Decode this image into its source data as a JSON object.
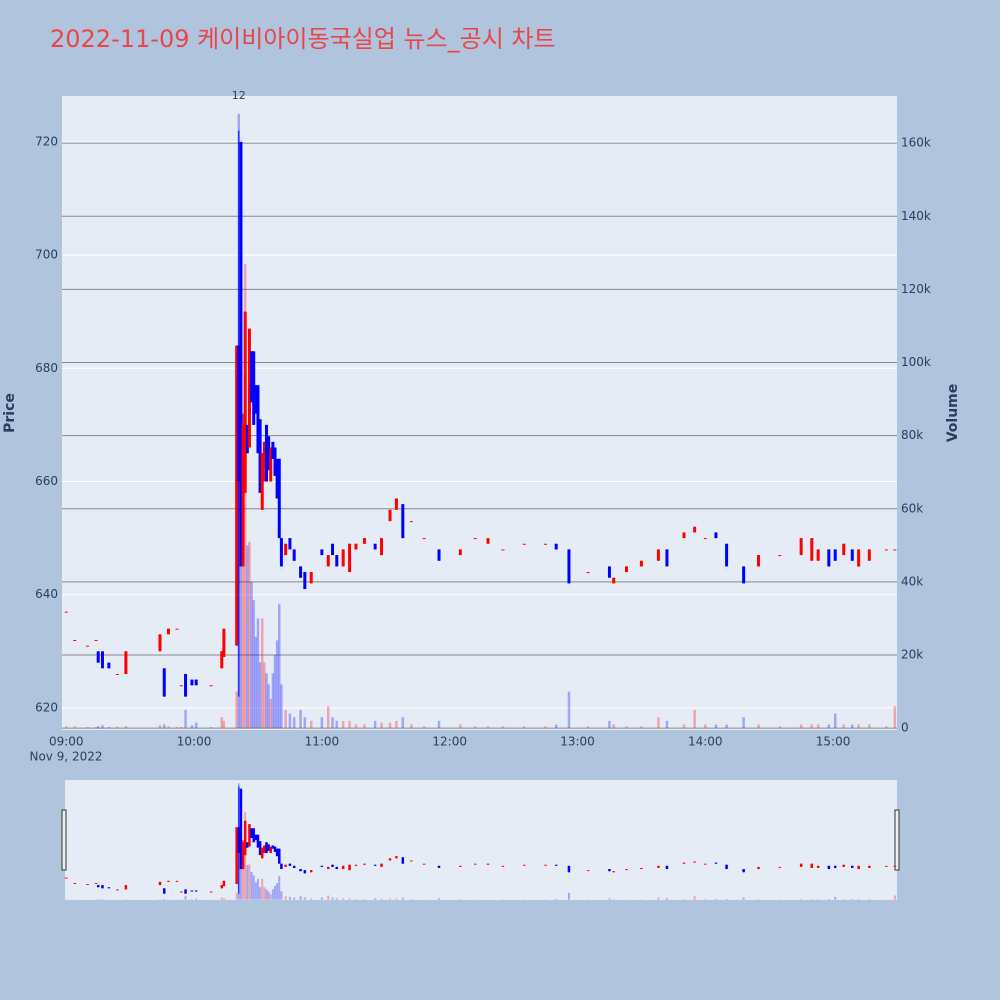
{
  "chart_data": {
    "type": "candlestick",
    "title": "2022-11-09 케이비아이동국실업 뉴스_공시 차트",
    "ylabel": "Price",
    "y2label": "Volume",
    "x": [
      "09:00",
      "09:04",
      "09:10",
      "09:14",
      "09:15",
      "09:17",
      "09:20",
      "09:24",
      "09:28",
      "09:44",
      "09:46",
      "09:48",
      "09:52",
      "09:54",
      "09:56",
      "09:59",
      "10:01",
      "10:08",
      "10:13",
      "10:14",
      "10:20",
      "10:21",
      "10:22",
      "10:23",
      "10:24",
      "10:25",
      "10:26",
      "10:27",
      "10:28",
      "10:29",
      "10:30",
      "10:31",
      "10:32",
      "10:33",
      "10:34",
      "10:35",
      "10:36",
      "10:37",
      "10:38",
      "10:39",
      "10:40",
      "10:41",
      "10:43",
      "10:45",
      "10:47",
      "10:50",
      "10:52",
      "10:55",
      "11:00",
      "11:03",
      "11:05",
      "11:07",
      "11:10",
      "11:13",
      "11:16",
      "11:20",
      "11:25",
      "11:28",
      "11:32",
      "11:35",
      "11:38",
      "11:42",
      "11:48",
      "11:55",
      "12:05",
      "12:12",
      "12:18",
      "12:25",
      "12:35",
      "12:45",
      "12:50",
      "12:56",
      "13:05",
      "13:15",
      "13:17",
      "13:23",
      "13:30",
      "13:38",
      "13:42",
      "13:50",
      "13:55",
      "14:00",
      "14:05",
      "14:10",
      "14:18",
      "14:25",
      "14:35",
      "14:45",
      "14:50",
      "14:53",
      "14:58",
      "15:01",
      "15:05",
      "15:09",
      "15:12",
      "15:17",
      "15:25",
      "15:29"
    ],
    "open": [
      637,
      632,
      631,
      632,
      630,
      630,
      628,
      626,
      626,
      630,
      627,
      633,
      634,
      624,
      626,
      625,
      625,
      624,
      627,
      629,
      631,
      684,
      720,
      645,
      658,
      670,
      666,
      683,
      683,
      677,
      677,
      671,
      655,
      660,
      670,
      668,
      660,
      667,
      666,
      664,
      664,
      650,
      647,
      650,
      648,
      645,
      644,
      642,
      648,
      645,
      649,
      647,
      645,
      644,
      648,
      649,
      649,
      647,
      653,
      655,
      656,
      653,
      650,
      648,
      647,
      650,
      649,
      648,
      649,
      649,
      649,
      648,
      644,
      645,
      642,
      644,
      645,
      646,
      648,
      650,
      651,
      650,
      651,
      649,
      645,
      645,
      647,
      647,
      646,
      646,
      648,
      648,
      647,
      648,
      645,
      646,
      648,
      648
    ],
    "high": [
      637,
      632,
      631,
      632,
      630,
      630,
      628,
      626,
      630,
      633,
      627,
      634,
      634,
      624,
      626,
      625,
      625,
      624,
      630,
      634,
      684,
      722,
      720,
      672,
      690,
      670,
      687,
      683,
      683,
      677,
      677,
      671,
      665,
      667,
      670,
      668,
      666,
      667,
      666,
      664,
      664,
      650,
      649,
      650,
      648,
      645,
      644,
      644,
      648,
      647,
      649,
      647,
      648,
      649,
      649,
      650,
      649,
      650,
      655,
      657,
      656,
      653,
      650,
      648,
      648,
      650,
      650,
      648,
      649,
      649,
      649,
      648,
      644,
      645,
      643,
      645,
      646,
      648,
      648,
      651,
      652,
      650,
      651,
      649,
      645,
      647,
      647,
      650,
      650,
      648,
      648,
      648,
      649,
      648,
      648,
      648,
      648,
      648
    ],
    "low": [
      637,
      632,
      631,
      632,
      628,
      627,
      627,
      626,
      626,
      630,
      622,
      633,
      634,
      624,
      622,
      624,
      624,
      624,
      627,
      629,
      631,
      622,
      645,
      645,
      658,
      665,
      666,
      674,
      670,
      672,
      665,
      658,
      655,
      660,
      660,
      662,
      660,
      664,
      661,
      657,
      650,
      645,
      647,
      648,
      646,
      643,
      641,
      642,
      647,
      645,
      647,
      645,
      645,
      644,
      648,
      649,
      648,
      647,
      653,
      655,
      650,
      653,
      650,
      646,
      647,
      650,
      649,
      648,
      649,
      649,
      648,
      642,
      644,
      643,
      642,
      644,
      645,
      646,
      645,
      650,
      651,
      650,
      650,
      645,
      642,
      645,
      647,
      647,
      646,
      646,
      645,
      646,
      647,
      646,
      645,
      646,
      648,
      648
    ],
    "close": [
      637,
      632,
      631,
      632,
      628,
      627,
      627,
      626,
      630,
      633,
      622,
      634,
      634,
      624,
      622,
      624,
      624,
      624,
      630,
      634,
      684,
      660,
      645,
      670,
      690,
      665,
      687,
      674,
      670,
      672,
      665,
      658,
      665,
      667,
      660,
      662,
      666,
      664,
      661,
      657,
      650,
      645,
      649,
      648,
      646,
      643,
      641,
      644,
      647,
      647,
      647,
      645,
      648,
      649,
      649,
      650,
      648,
      650,
      655,
      657,
      650,
      653,
      650,
      646,
      648,
      650,
      650,
      648,
      649,
      649,
      648,
      642,
      644,
      643,
      643,
      645,
      646,
      648,
      645,
      651,
      652,
      650,
      650,
      645,
      642,
      647,
      647,
      650,
      650,
      648,
      645,
      646,
      649,
      646,
      648,
      648,
      648,
      648
    ],
    "volume": [
      500,
      500,
      300,
      300,
      500,
      800,
      300,
      400,
      600,
      800,
      1000,
      500,
      300,
      300,
      5000,
      800,
      1500,
      300,
      3000,
      2000,
      10000,
      168000,
      160000,
      60000,
      127000,
      50000,
      51000,
      40000,
      35000,
      25000,
      30000,
      18000,
      30000,
      18000,
      15000,
      12000,
      8000,
      15000,
      20000,
      24000,
      34000,
      12000,
      5000,
      4000,
      3000,
      5000,
      3000,
      2000,
      3000,
      6000,
      3000,
      2000,
      2000,
      2000,
      1000,
      1000,
      2000,
      1500,
      1500,
      2000,
      3000,
      1000,
      500,
      2000,
      1000,
      500,
      500,
      500,
      500,
      500,
      1000,
      10000,
      500,
      2000,
      1000,
      500,
      500,
      3000,
      2000,
      1000,
      5000,
      1000,
      1000,
      1000,
      3000,
      1000,
      500,
      1000,
      1000,
      1000,
      1000,
      4000,
      1000,
      1000,
      1000,
      1000,
      500,
      6000
    ],
    "increasing_color": "#ff0000",
    "decreasing_color": "#0000ff",
    "xlim": [
      "08:58",
      "15:30"
    ],
    "xticks": [
      "09:00",
      "10:00",
      "11:00",
      "12:00",
      "13:00",
      "14:00",
      "15:00"
    ],
    "x_date": "Nov 9, 2022",
    "ylim": [
      616.1,
      728.1
    ],
    "yticks": [
      620,
      640,
      660,
      680,
      700,
      720
    ],
    "y2lim": [
      -500,
      172900
    ],
    "y2ticks": [
      {
        "value": 0,
        "label": "0"
      },
      {
        "value": 20000,
        "label": "20k"
      },
      {
        "value": 40000,
        "label": "40k"
      },
      {
        "value": 60000,
        "label": "60k"
      },
      {
        "value": 80000,
        "label": "80k"
      },
      {
        "value": 100000,
        "label": "100k"
      },
      {
        "value": 120000,
        "label": "120k"
      },
      {
        "value": 140000,
        "label": "140k"
      },
      {
        "value": 160000,
        "label": "160k"
      }
    ],
    "annotations": [
      {
        "x": "10:21",
        "text": "12"
      }
    ],
    "grid": true,
    "rangeslider": true
  }
}
